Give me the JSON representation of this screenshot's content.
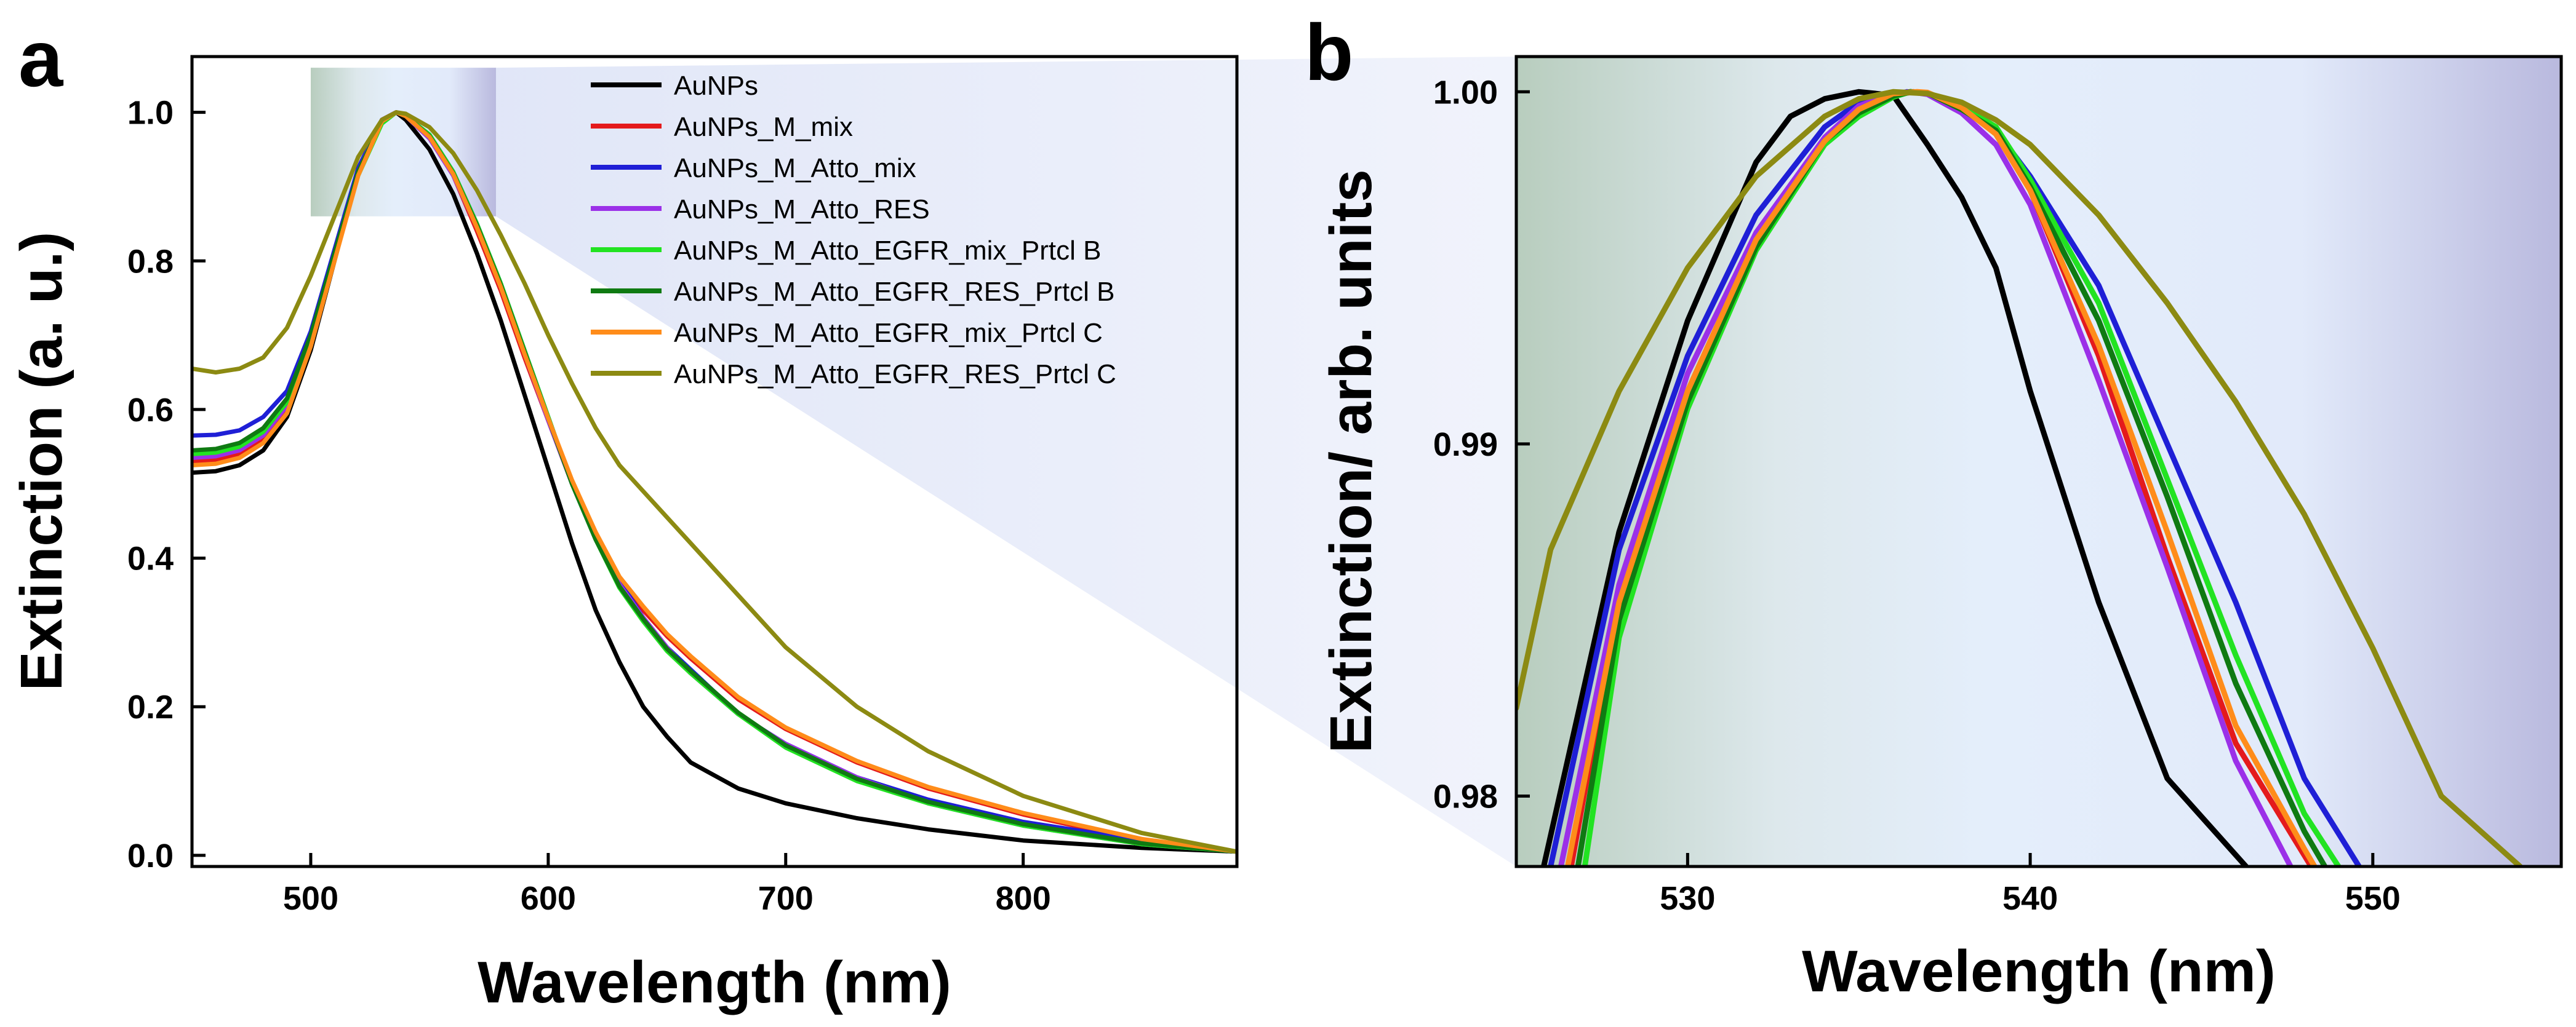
{
  "colors": {
    "AuNPs": "#000000",
    "AuNPs_M_mix": "#e41a1c",
    "AuNPs_M_Atto_mix": "#1f1fd6",
    "AuNPs_M_Atto_RES": "#9b30e8",
    "AuNPs_M_Atto_EGFR_mix_Prtcl B": "#22e322",
    "AuNPs_M_Atto_EGFR_RES_Prtcl B": "#0f7a12",
    "AuNPs_M_Atto_EGFR_mix_Prtcl C": "#ff8c1a",
    "AuNPs_M_Atto_EGFR_RES_Prtcl C": "#8c8a12"
  },
  "chart_data": [
    {
      "panel": "a",
      "type": "line",
      "xlabel": "Wavelength (nm)",
      "ylabel": "Extinction (a. u.)",
      "xlim": [
        450,
        890
      ],
      "ylim": [
        -0.015,
        1.075
      ],
      "xticks": [
        {
          "value": 500,
          "label": "500"
        },
        {
          "value": 600,
          "label": "600"
        },
        {
          "value": 700,
          "label": "700"
        },
        {
          "value": 800,
          "label": "800"
        }
      ],
      "yticks": [
        {
          "value": 0.0,
          "label": "0.0"
        },
        {
          "value": 0.2,
          "label": "0.2"
        },
        {
          "value": 0.4,
          "label": "0.4"
        },
        {
          "value": 0.6,
          "label": "0.6"
        },
        {
          "value": 0.8,
          "label": "0.8"
        },
        {
          "value": 1.0,
          "label": "1.0"
        }
      ],
      "zoom_region": {
        "x": [
          500,
          578
        ],
        "y": [
          0.86,
          1.06
        ]
      },
      "legend": {
        "placement": "top-center",
        "entries": [
          "AuNPs",
          "AuNPs_M_mix",
          "AuNPs_M_Atto_mix",
          "AuNPs_M_Atto_RES",
          "AuNPs_M_Atto_EGFR_mix_Prtcl B",
          "AuNPs_M_Atto_EGFR_RES_Prtcl B",
          "AuNPs_M_Atto_EGFR_mix_Prtcl C",
          "AuNPs_M_Atto_EGFR_RES_Prtcl C"
        ]
      },
      "series": [
        {
          "name": "AuNPs",
          "x": [
            450,
            460,
            470,
            480,
            490,
            500,
            510,
            520,
            530,
            536,
            540,
            550,
            560,
            570,
            580,
            590,
            600,
            610,
            620,
            630,
            640,
            650,
            660,
            680,
            700,
            730,
            760,
            800,
            850,
            890
          ],
          "y": [
            0.515,
            0.517,
            0.525,
            0.545,
            0.59,
            0.68,
            0.8,
            0.92,
            0.99,
            1.0,
            0.99,
            0.95,
            0.89,
            0.81,
            0.72,
            0.62,
            0.52,
            0.42,
            0.33,
            0.26,
            0.2,
            0.16,
            0.125,
            0.09,
            0.07,
            0.05,
            0.035,
            0.02,
            0.01,
            0.005
          ]
        },
        {
          "name": "AuNPs_M_mix",
          "x": [
            450,
            460,
            470,
            480,
            490,
            500,
            510,
            520,
            530,
            536,
            540,
            550,
            560,
            570,
            580,
            590,
            600,
            610,
            620,
            630,
            640,
            650,
            660,
            680,
            700,
            730,
            760,
            800,
            850,
            890
          ],
          "y": [
            0.53,
            0.532,
            0.54,
            0.56,
            0.6,
            0.69,
            0.805,
            0.92,
            0.99,
            1.0,
            0.995,
            0.965,
            0.915,
            0.84,
            0.76,
            0.67,
            0.585,
            0.5,
            0.43,
            0.37,
            0.33,
            0.295,
            0.265,
            0.21,
            0.17,
            0.125,
            0.09,
            0.055,
            0.02,
            0.005
          ]
        },
        {
          "name": "AuNPs_M_Atto_mix",
          "x": [
            450,
            460,
            470,
            480,
            490,
            500,
            510,
            520,
            530,
            536,
            540,
            550,
            560,
            570,
            580,
            590,
            600,
            610,
            620,
            630,
            640,
            650,
            660,
            680,
            700,
            730,
            760,
            800,
            850,
            890
          ],
          "y": [
            0.565,
            0.566,
            0.572,
            0.59,
            0.625,
            0.705,
            0.815,
            0.925,
            0.99,
            1.0,
            0.995,
            0.97,
            0.92,
            0.85,
            0.77,
            0.68,
            0.59,
            0.5,
            0.43,
            0.37,
            0.32,
            0.28,
            0.25,
            0.19,
            0.15,
            0.105,
            0.075,
            0.045,
            0.02,
            0.005
          ]
        },
        {
          "name": "AuNPs_M_Atto_RES",
          "x": [
            450,
            460,
            470,
            480,
            490,
            500,
            510,
            520,
            530,
            536,
            540,
            550,
            560,
            570,
            580,
            590,
            600,
            610,
            620,
            630,
            640,
            650,
            660,
            680,
            700,
            730,
            760,
            800,
            850,
            890
          ],
          "y": [
            0.535,
            0.537,
            0.545,
            0.565,
            0.605,
            0.69,
            0.805,
            0.92,
            0.99,
            1.0,
            0.995,
            0.965,
            0.915,
            0.845,
            0.765,
            0.675,
            0.585,
            0.5,
            0.425,
            0.365,
            0.32,
            0.28,
            0.245,
            0.19,
            0.15,
            0.105,
            0.07,
            0.04,
            0.015,
            0.005
          ]
        },
        {
          "name": "AuNPs_M_Atto_EGFR_mix_Prtcl B",
          "x": [
            450,
            460,
            470,
            480,
            490,
            500,
            510,
            520,
            530,
            536,
            540,
            550,
            560,
            570,
            580,
            590,
            600,
            610,
            620,
            630,
            640,
            650,
            660,
            680,
            700,
            730,
            760,
            800,
            850,
            890
          ],
          "y": [
            0.54,
            0.542,
            0.55,
            0.57,
            0.61,
            0.695,
            0.805,
            0.915,
            0.985,
            1.0,
            0.995,
            0.97,
            0.92,
            0.85,
            0.77,
            0.68,
            0.59,
            0.5,
            0.425,
            0.36,
            0.315,
            0.275,
            0.245,
            0.19,
            0.145,
            0.1,
            0.07,
            0.04,
            0.015,
            0.005
          ]
        },
        {
          "name": "AuNPs_M_Atto_EGFR_RES_Prtcl B",
          "x": [
            450,
            460,
            470,
            480,
            490,
            500,
            510,
            520,
            530,
            536,
            540,
            550,
            560,
            570,
            580,
            590,
            600,
            610,
            620,
            630,
            640,
            650,
            660,
            680,
            700,
            730,
            760,
            800,
            850,
            890
          ],
          "y": [
            0.545,
            0.547,
            0.555,
            0.575,
            0.615,
            0.7,
            0.81,
            0.92,
            0.988,
            1.0,
            0.995,
            0.968,
            0.918,
            0.848,
            0.768,
            0.678,
            0.588,
            0.5,
            0.425,
            0.362,
            0.318,
            0.278,
            0.248,
            0.192,
            0.148,
            0.103,
            0.072,
            0.042,
            0.016,
            0.005
          ]
        },
        {
          "name": "AuNPs_M_Atto_EGFR_mix_Prtcl C",
          "x": [
            450,
            460,
            470,
            480,
            490,
            500,
            510,
            520,
            530,
            536,
            540,
            550,
            560,
            570,
            580,
            590,
            600,
            610,
            620,
            630,
            640,
            650,
            660,
            680,
            700,
            730,
            760,
            800,
            850,
            890
          ],
          "y": [
            0.525,
            0.527,
            0.535,
            0.555,
            0.595,
            0.685,
            0.8,
            0.915,
            0.988,
            1.0,
            0.995,
            0.967,
            0.917,
            0.845,
            0.765,
            0.675,
            0.588,
            0.505,
            0.435,
            0.375,
            0.335,
            0.298,
            0.268,
            0.213,
            0.172,
            0.127,
            0.092,
            0.057,
            0.022,
            0.005
          ]
        },
        {
          "name": "AuNPs_M_Atto_EGFR_RES_Prtcl C",
          "x": [
            450,
            460,
            470,
            480,
            490,
            500,
            510,
            520,
            530,
            536,
            540,
            550,
            560,
            570,
            580,
            590,
            600,
            610,
            620,
            630,
            640,
            650,
            660,
            680,
            700,
            730,
            760,
            800,
            850,
            890
          ],
          "y": [
            0.655,
            0.65,
            0.655,
            0.67,
            0.71,
            0.78,
            0.86,
            0.94,
            0.99,
            1.0,
            0.998,
            0.98,
            0.945,
            0.895,
            0.835,
            0.77,
            0.7,
            0.635,
            0.575,
            0.525,
            0.49,
            0.455,
            0.42,
            0.35,
            0.28,
            0.2,
            0.14,
            0.08,
            0.03,
            0.005
          ]
        }
      ]
    },
    {
      "panel": "b",
      "type": "line",
      "xlabel": "Wavelength (nm)",
      "ylabel": "Extinction/ arb. units",
      "xlim": [
        525,
        555.5
      ],
      "ylim": [
        0.978,
        1.001
      ],
      "xticks": [
        {
          "value": 530,
          "label": "530"
        },
        {
          "value": 540,
          "label": "540"
        },
        {
          "value": 550,
          "label": "550"
        }
      ],
      "yticks": [
        {
          "value": 0.98,
          "label": "0.98"
        },
        {
          "value": 0.99,
          "label": "0.99"
        },
        {
          "value": 1.0,
          "label": "1.00"
        }
      ],
      "series": [
        {
          "name": "AuNPs",
          "x": [
            525.8,
            528,
            530,
            532,
            533,
            534,
            535,
            536,
            537,
            538,
            539,
            540,
            542,
            544,
            546.3
          ],
          "y": [
            0.978,
            0.9875,
            0.9935,
            0.998,
            0.9993,
            0.9998,
            1.0,
            0.9999,
            0.9985,
            0.997,
            0.995,
            0.9915,
            0.9855,
            0.9805,
            0.978
          ]
        },
        {
          "name": "AuNPs_M_mix",
          "x": [
            526.6,
            528,
            530,
            532,
            534,
            535,
            536,
            536.6,
            537,
            538,
            539,
            540,
            542,
            544,
            546,
            548.2
          ],
          "y": [
            0.978,
            0.9855,
            0.9915,
            0.9958,
            0.9985,
            0.9995,
            0.9999,
            1.0,
            0.99995,
            0.9996,
            0.9988,
            0.9972,
            0.9925,
            0.9868,
            0.9815,
            0.978
          ]
        },
        {
          "name": "AuNPs_M_Atto_mix",
          "x": [
            526,
            528,
            530,
            532,
            534,
            535,
            536,
            536.4,
            537,
            538,
            539,
            540,
            542,
            544,
            546,
            548,
            549.6
          ],
          "y": [
            0.978,
            0.987,
            0.9925,
            0.9965,
            0.999,
            0.9997,
            0.9999,
            1.0,
            0.99995,
            0.9995,
            0.9989,
            0.9976,
            0.9945,
            0.99,
            0.9855,
            0.9805,
            0.978
          ]
        },
        {
          "name": "AuNPs_M_Atto_RES",
          "x": [
            526.3,
            528,
            530,
            532,
            534,
            535,
            536,
            536.5,
            537,
            538,
            539,
            540,
            542,
            544,
            546,
            547.6
          ],
          "y": [
            0.978,
            0.986,
            0.992,
            0.996,
            0.9987,
            0.9996,
            0.99995,
            1.0,
            0.99993,
            0.9994,
            0.9985,
            0.9968,
            0.9918,
            0.9865,
            0.981,
            0.978
          ]
        },
        {
          "name": "AuNPs_M_Atto_EGFR_mix_Prtcl B",
          "x": [
            527,
            528,
            530,
            532,
            534,
            535,
            536,
            536.5,
            537,
            538,
            539,
            540,
            542,
            544,
            546,
            548,
            549
          ],
          "y": [
            0.978,
            0.9845,
            0.991,
            0.9955,
            0.9985,
            0.9993,
            0.99985,
            1.0,
            0.99997,
            0.9996,
            0.999,
            0.9975,
            0.994,
            0.989,
            0.984,
            0.9795,
            0.978
          ]
        },
        {
          "name": "AuNPs_M_Atto_EGFR_RES_Prtcl B",
          "x": [
            526.8,
            528,
            530,
            532,
            534,
            535,
            536,
            536.5,
            537,
            538,
            539,
            540,
            542,
            544,
            546,
            548,
            548.6
          ],
          "y": [
            0.978,
            0.985,
            0.9912,
            0.9956,
            0.9986,
            0.9994,
            0.99988,
            1.0,
            0.99997,
            0.9995,
            0.9989,
            0.9973,
            0.9935,
            0.9885,
            0.9832,
            0.979,
            0.978
          ]
        },
        {
          "name": "AuNPs_M_Atto_EGFR_mix_Prtcl C",
          "x": [
            526.5,
            528,
            530,
            532,
            534,
            535,
            536,
            536.7,
            537,
            538,
            539,
            540,
            542,
            544,
            546,
            548,
            548.3
          ],
          "y": [
            0.978,
            0.9855,
            0.9915,
            0.9958,
            0.9986,
            0.9995,
            0.99995,
            1.0,
            0.99998,
            0.99955,
            0.9988,
            0.9972,
            0.9928,
            0.9875,
            0.982,
            0.9785,
            0.978
          ]
        },
        {
          "name": "AuNPs_M_Atto_EGFR_RES_Prtcl C",
          "x": [
            525,
            526,
            528,
            530,
            532,
            534,
            535,
            536,
            537,
            538,
            539,
            540,
            542,
            544,
            546,
            548,
            550,
            552,
            554.3
          ],
          "y": [
            0.9825,
            0.987,
            0.9915,
            0.995,
            0.9976,
            0.9993,
            0.9998,
            1.0,
            0.99995,
            0.9997,
            0.9992,
            0.9985,
            0.9965,
            0.994,
            0.9912,
            0.988,
            0.9842,
            0.98,
            0.978
          ]
        }
      ]
    }
  ]
}
